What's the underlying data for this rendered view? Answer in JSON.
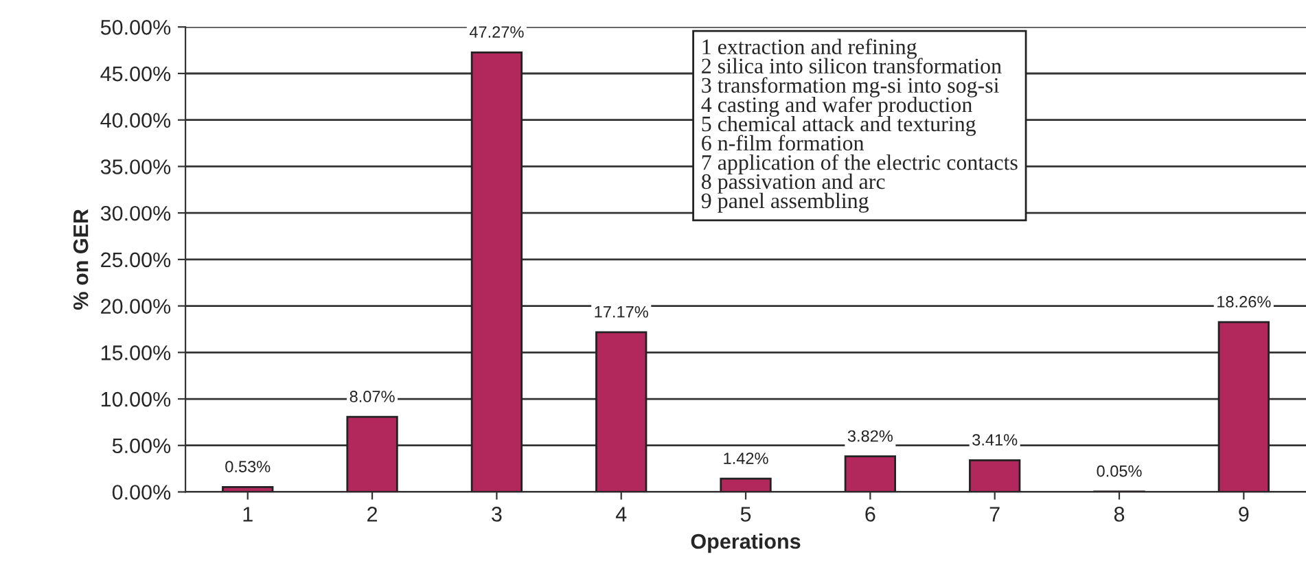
{
  "chart_data": {
    "type": "bar",
    "xlabel": "Operations",
    "ylabel": "% on GER",
    "categories": [
      "1",
      "2",
      "3",
      "4",
      "5",
      "6",
      "7",
      "8",
      "9"
    ],
    "values": [
      0.53,
      8.07,
      47.27,
      17.17,
      1.42,
      3.82,
      3.41,
      0.05,
      18.26
    ],
    "value_labels": [
      "0.53%",
      "8.07%",
      "47.27%",
      "17.17%",
      "1.42%",
      "3.82%",
      "3.41%",
      "0.05%",
      "18.26%"
    ],
    "color": "#b3285c",
    "ylim": [
      0,
      50
    ],
    "yticks": [
      {
        "value": 0,
        "label": "0.00%"
      },
      {
        "value": 5,
        "label": "5.00%"
      },
      {
        "value": 10,
        "label": "10.00%"
      },
      {
        "value": 15,
        "label": "15.00%"
      },
      {
        "value": 20,
        "label": "20.00%"
      },
      {
        "value": 25,
        "label": "25.00%"
      },
      {
        "value": 30,
        "label": "30.00%"
      },
      {
        "value": 35,
        "label": "35.00%"
      },
      {
        "value": 40,
        "label": "40.00%"
      },
      {
        "value": 45,
        "label": "45.00%"
      },
      {
        "value": 50,
        "label": "50.00%"
      }
    ],
    "grid": "y",
    "annotations": [
      "1 extraction and refining",
      "2 silica into silicon transformation",
      "3 transformation mg-si into sog-si",
      "4 casting and wafer production",
      "5 chemical attack and texturing",
      "6 n-film formation",
      "7 application of the electric contacts",
      "8 passivation and arc",
      "9 panel assembling"
    ]
  }
}
